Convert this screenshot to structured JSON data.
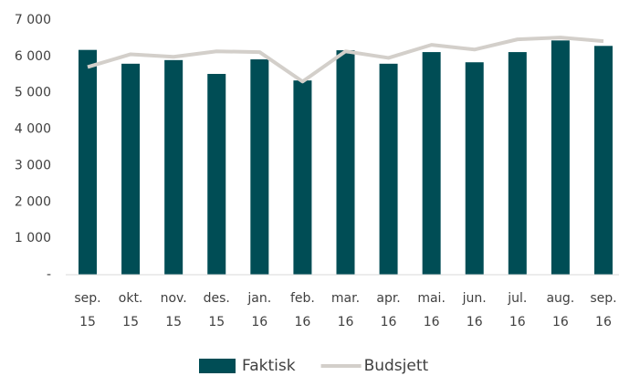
{
  "chart_data": {
    "type": "bar-line",
    "categories": [
      [
        "sep.",
        "15"
      ],
      [
        "okt.",
        "15"
      ],
      [
        "nov.",
        "15"
      ],
      [
        "des.",
        "15"
      ],
      [
        "jan.",
        "16"
      ],
      [
        "feb.",
        "16"
      ],
      [
        "mar.",
        "16"
      ],
      [
        "apr.",
        "16"
      ],
      [
        "mai.",
        "16"
      ],
      [
        "jun.",
        "16"
      ],
      [
        "jul.",
        "16"
      ],
      [
        "aug.",
        "16"
      ],
      [
        "sep.",
        "16"
      ]
    ],
    "series": [
      {
        "name": "Faktisk",
        "type": "bar",
        "color": "#004d55",
        "values": [
          6180,
          5800,
          5900,
          5520,
          5920,
          5340,
          6170,
          5800,
          6120,
          5840,
          6120,
          6440,
          6290
        ]
      },
      {
        "name": "Budsjett",
        "type": "line",
        "color": "#d3cfca",
        "values": [
          5710,
          6060,
          5990,
          6140,
          6120,
          5310,
          6140,
          5960,
          6320,
          6190,
          6470,
          6520,
          6420
        ]
      }
    ],
    "ylim": [
      0,
      7000
    ],
    "yticks": [
      {
        "value": 0,
        "label": "-"
      },
      {
        "value": 1000,
        "label": "1 000"
      },
      {
        "value": 2000,
        "label": "2 000"
      },
      {
        "value": 3000,
        "label": "3 000"
      },
      {
        "value": 4000,
        "label": "4 000"
      },
      {
        "value": 5000,
        "label": "5 000"
      },
      {
        "value": 6000,
        "label": "6 000"
      },
      {
        "value": 7000,
        "label": "7 000"
      }
    ],
    "grid": false,
    "legend": "bottom"
  }
}
